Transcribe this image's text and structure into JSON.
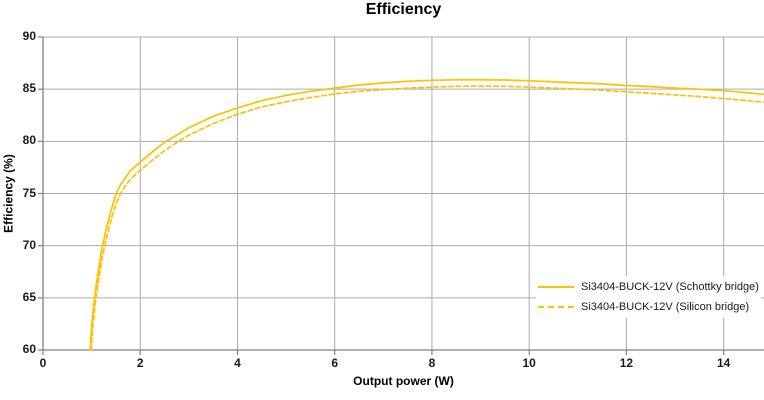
{
  "chart_data": {
    "type": "line",
    "title": "Efficiency",
    "xlabel": "Output power (W)",
    "ylabel": "Efficiency (%)",
    "xlim": [
      0,
      14.83
    ],
    "ylim": [
      60,
      90
    ],
    "xticks": [
      0,
      2,
      4,
      6,
      8,
      10,
      12,
      14
    ],
    "yticks": [
      60,
      65,
      70,
      75,
      80,
      85,
      90
    ],
    "grid": true,
    "legend_position": "inside-right",
    "colors": {
      "grid": "#ABABAB",
      "axis": "#808080",
      "text": "#1A1A1A",
      "accent": "#FFC000"
    },
    "series": [
      {
        "name": "Si3404-BUCK-12V (Schottky bridge)",
        "color": "#FFC000",
        "style": "solid",
        "points": [
          [
            0.97,
            60
          ],
          [
            1.0,
            62.2
          ],
          [
            1.05,
            64.6
          ],
          [
            1.1,
            66.4
          ],
          [
            1.2,
            69.4
          ],
          [
            1.3,
            71.6
          ],
          [
            1.4,
            73.4
          ],
          [
            1.5,
            74.9
          ],
          [
            1.6,
            75.9
          ],
          [
            1.8,
            77.2
          ],
          [
            2.0,
            78.0
          ],
          [
            2.25,
            79.0
          ],
          [
            2.5,
            79.9
          ],
          [
            2.75,
            80.6
          ],
          [
            3.0,
            81.3
          ],
          [
            3.5,
            82.4
          ],
          [
            4.0,
            83.2
          ],
          [
            4.5,
            83.9
          ],
          [
            5.0,
            84.4
          ],
          [
            5.5,
            84.8
          ],
          [
            6.0,
            85.1
          ],
          [
            6.5,
            85.4
          ],
          [
            7.0,
            85.6
          ],
          [
            7.5,
            85.75
          ],
          [
            8.0,
            85.85
          ],
          [
            8.5,
            85.9
          ],
          [
            9.0,
            85.9
          ],
          [
            9.5,
            85.88
          ],
          [
            10.0,
            85.8
          ],
          [
            10.5,
            85.7
          ],
          [
            11.0,
            85.6
          ],
          [
            11.5,
            85.5
          ],
          [
            12.0,
            85.35
          ],
          [
            12.5,
            85.25
          ],
          [
            13.0,
            85.1
          ],
          [
            13.5,
            85.0
          ],
          [
            14.0,
            84.85
          ],
          [
            14.5,
            84.65
          ],
          [
            14.83,
            84.5
          ]
        ]
      },
      {
        "name": "Si3404-BUCK-12V (Silicon bridge)",
        "color": "#FFC000",
        "style": "dashed",
        "points": [
          [
            0.99,
            60
          ],
          [
            1.02,
            62.0
          ],
          [
            1.07,
            64.3
          ],
          [
            1.12,
            66.0
          ],
          [
            1.22,
            68.9
          ],
          [
            1.32,
            71.0
          ],
          [
            1.42,
            72.8
          ],
          [
            1.52,
            74.2
          ],
          [
            1.62,
            75.2
          ],
          [
            1.8,
            76.4
          ],
          [
            2.0,
            77.2
          ],
          [
            2.25,
            78.2
          ],
          [
            2.5,
            79.1
          ],
          [
            2.75,
            79.9
          ],
          [
            3.0,
            80.6
          ],
          [
            3.5,
            81.7
          ],
          [
            4.0,
            82.6
          ],
          [
            4.5,
            83.3
          ],
          [
            5.0,
            83.8
          ],
          [
            5.5,
            84.2
          ],
          [
            6.0,
            84.55
          ],
          [
            6.5,
            84.8
          ],
          [
            7.0,
            84.95
          ],
          [
            7.5,
            85.1
          ],
          [
            8.0,
            85.2
          ],
          [
            8.5,
            85.27
          ],
          [
            9.0,
            85.3
          ],
          [
            9.5,
            85.27
          ],
          [
            10.0,
            85.2
          ],
          [
            10.5,
            85.1
          ],
          [
            11.0,
            85.0
          ],
          [
            11.5,
            84.9
          ],
          [
            12.0,
            84.75
          ],
          [
            12.5,
            84.6
          ],
          [
            13.0,
            84.45
          ],
          [
            13.5,
            84.3
          ],
          [
            14.0,
            84.1
          ],
          [
            14.5,
            83.9
          ],
          [
            14.83,
            83.75
          ]
        ]
      }
    ]
  }
}
